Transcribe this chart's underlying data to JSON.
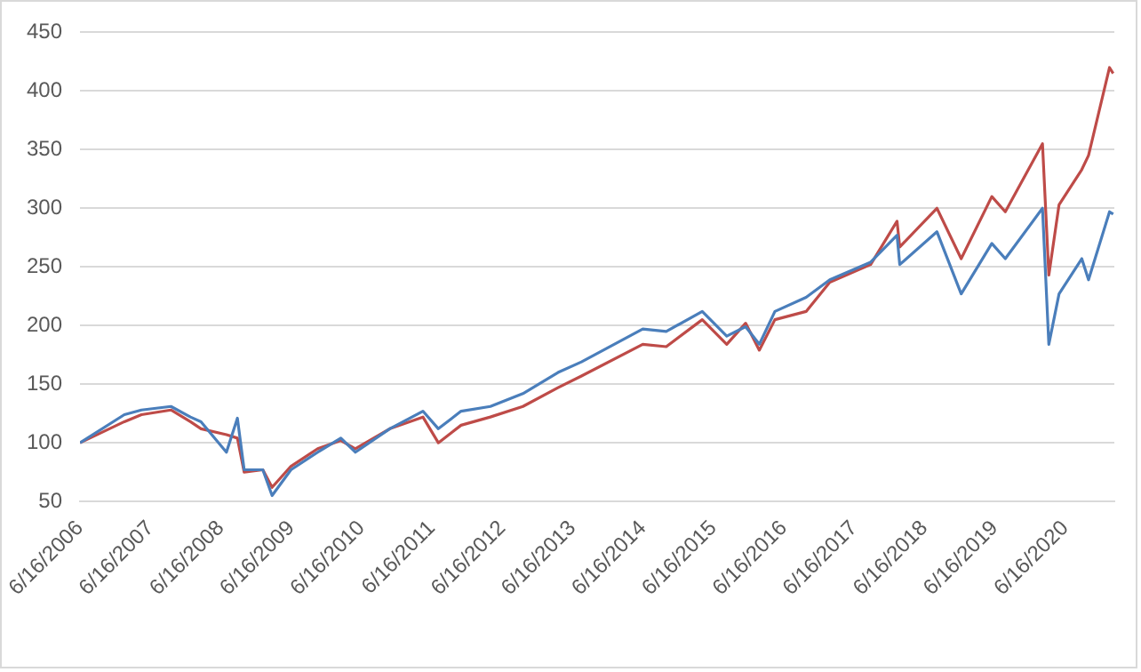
{
  "chart_data": {
    "type": "line",
    "x": [
      "2006-06-16",
      "2007-02-01",
      "2007-05-01",
      "2007-10-01",
      "2008-01-10",
      "2008-03-05",
      "2008-07-15",
      "2008-09-10",
      "2008-10-15",
      "2009-01-20",
      "2009-03-09",
      "2009-06-15",
      "2009-11-01",
      "2010-03-01",
      "2010-05-15",
      "2010-11-10",
      "2011-05-01",
      "2011-07-20",
      "2011-11-15",
      "2012-04-15",
      "2012-10-01",
      "2013-04-01",
      "2013-08-01",
      "2014-06-15",
      "2014-10-15",
      "2015-04-20",
      "2015-08-25",
      "2015-12-01",
      "2016-02-10",
      "2016-05-01",
      "2016-10-10",
      "2017-02-10",
      "2017-09-10",
      "2018-01-25",
      "2018-02-08",
      "2018-08-20",
      "2018-12-24",
      "2019-06-01",
      "2019-08-10",
      "2020-02-19",
      "2020-03-23",
      "2020-05-15",
      "2020-09-10",
      "2020-10-15",
      "2021-02-01",
      "2021-02-20"
    ],
    "series": [
      {
        "color": "#4a7ebb",
        "values": [
          100,
          124,
          128,
          131,
          122,
          118,
          92,
          121,
          77,
          77,
          55,
          77,
          92,
          104,
          92,
          112,
          127,
          112,
          127,
          131,
          142,
          160,
          169,
          197,
          195,
          212,
          191,
          199,
          184,
          212,
          224,
          239,
          254,
          277,
          252,
          280,
          227,
          270,
          257,
          300,
          184,
          227,
          257,
          239,
          297,
          295
        ]
      },
      {
        "color": "#be4b48",
        "values": [
          100,
          118,
          124,
          128,
          118,
          112,
          107,
          104,
          75,
          77,
          62,
          80,
          95,
          102,
          95,
          112,
          122,
          100,
          115,
          122,
          131,
          147,
          157,
          184,
          182,
          205,
          184,
          202,
          179,
          205,
          212,
          237,
          252,
          289,
          267,
          300,
          257,
          310,
          297,
          355,
          243,
          303,
          333,
          345,
          420,
          415
        ]
      }
    ],
    "xlim": [
      "2006-06-16",
      "2021-02-26"
    ],
    "xticks": [
      {
        "value": "2006-06-16",
        "label": "6/16/2006"
      },
      {
        "value": "2007-06-16",
        "label": "6/16/2007"
      },
      {
        "value": "2008-06-16",
        "label": "6/16/2008"
      },
      {
        "value": "2009-06-16",
        "label": "6/16/2009"
      },
      {
        "value": "2010-06-16",
        "label": "6/16/2010"
      },
      {
        "value": "2011-06-16",
        "label": "6/16/2011"
      },
      {
        "value": "2012-06-16",
        "label": "6/16/2012"
      },
      {
        "value": "2013-06-16",
        "label": "6/16/2013"
      },
      {
        "value": "2014-06-16",
        "label": "6/16/2014"
      },
      {
        "value": "2015-06-16",
        "label": "6/16/2015"
      },
      {
        "value": "2016-06-16",
        "label": "6/16/2016"
      },
      {
        "value": "2017-06-16",
        "label": "6/16/2017"
      },
      {
        "value": "2018-06-16",
        "label": "6/16/2018"
      },
      {
        "value": "2019-06-16",
        "label": "6/16/2019"
      },
      {
        "value": "2020-06-16",
        "label": "6/16/2020"
      }
    ],
    "ylim": [
      50,
      450
    ],
    "yticks": [
      50,
      100,
      150,
      200,
      250,
      300,
      350,
      400,
      450
    ],
    "grid": "y",
    "marker": "none",
    "line_style": "solid"
  }
}
